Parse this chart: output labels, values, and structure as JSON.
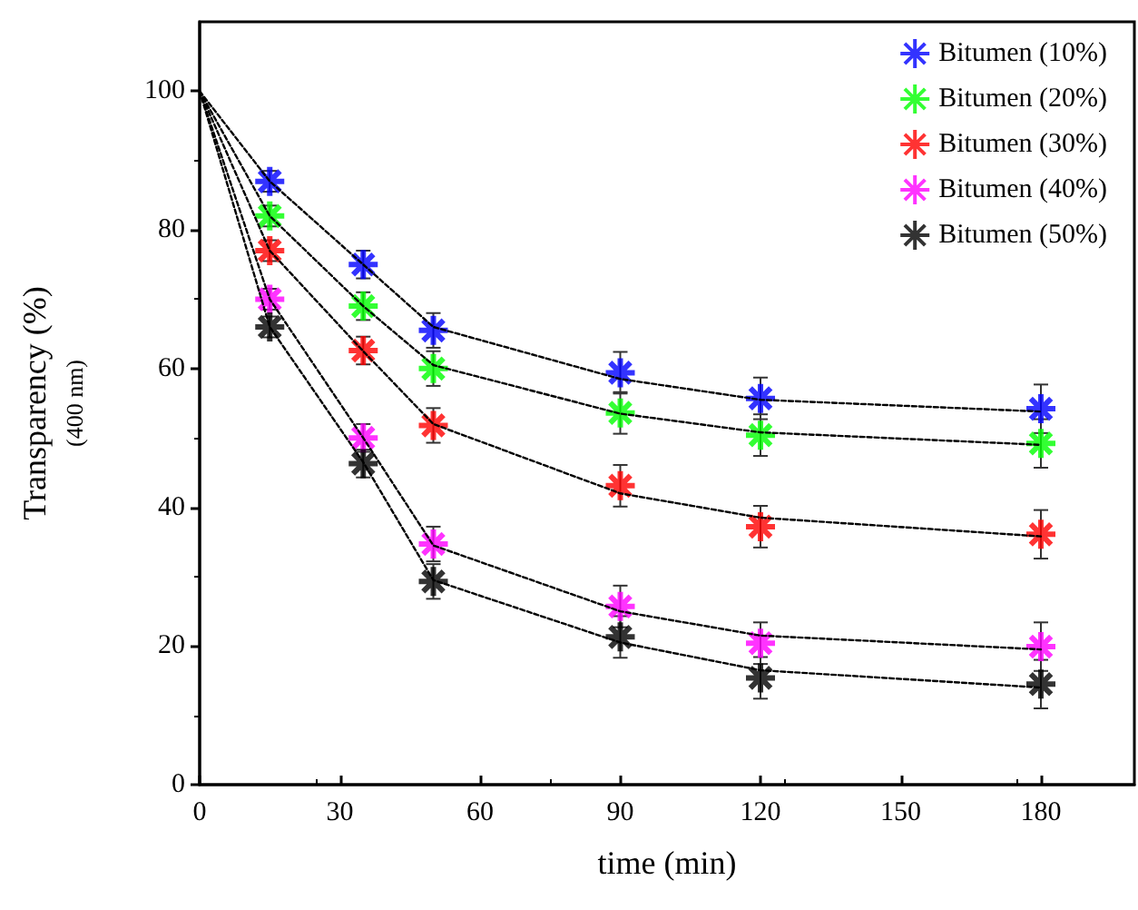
{
  "chart_data": {
    "type": "scatter",
    "xlabel": "time (min)",
    "ylabel": "Transparency (%)\n(400 nm)",
    "x": [
      15,
      35,
      50,
      90,
      120,
      180
    ],
    "xlim": [
      0,
      200
    ],
    "xticks": [
      0,
      30,
      60,
      90,
      120,
      150,
      180
    ],
    "ylim": [
      0,
      110
    ],
    "yticks": [
      0,
      20,
      40,
      60,
      80,
      100
    ],
    "grid": false,
    "legend": "top right",
    "marker": "cross",
    "series": [
      {
        "name": "Bitumen (10%)",
        "color": "#0000ff",
        "values": [
          87,
          75,
          65.5,
          59.4,
          55.7,
          54.2
        ],
        "errors": [
          1.5,
          2,
          2.5,
          3,
          3,
          3.5
        ]
      },
      {
        "name": "Bitumen (20%)",
        "color": "#00ff00",
        "values": [
          82,
          69,
          60,
          53.6,
          50.4,
          49.2
        ],
        "errors": [
          1.5,
          2,
          2.5,
          3,
          3,
          3.5
        ]
      },
      {
        "name": "Bitumen (30%)",
        "color": "#ff0000",
        "values": [
          77,
          62.6,
          51.8,
          43.1,
          37.2,
          36.1
        ],
        "errors": [
          1.5,
          2,
          2.5,
          3,
          3,
          3.5
        ]
      },
      {
        "name": "Bitumen (40%)",
        "color": "#ff00ff",
        "values": [
          70,
          50,
          34.7,
          25.7,
          20.4,
          19.9
        ],
        "errors": [
          1.5,
          2,
          2.5,
          3,
          3,
          3.5
        ]
      },
      {
        "name": "Bitumen (50%)",
        "color": "#000000",
        "values": [
          66,
          46.3,
          29.3,
          21.3,
          15.4,
          14.5
        ],
        "errors": [
          1.5,
          2,
          2.5,
          3,
          3,
          3.5
        ]
      },
      {
        "type": "line",
        "color": "#000000",
        "line_style": "dashed",
        "marker": "none",
        "x": [
          0,
          15,
          35,
          50,
          90,
          120,
          180
        ],
        "values": [
          100,
          87,
          75,
          66,
          58.5,
          55.5,
          53.8
        ]
      },
      {
        "type": "line",
        "color": "#000000",
        "line_style": "dashed",
        "marker": "none",
        "x": [
          0,
          15,
          35,
          50,
          90,
          120,
          180
        ],
        "values": [
          100,
          82,
          69,
          60.5,
          53.5,
          50.8,
          49
        ]
      },
      {
        "type": "line",
        "color": "#000000",
        "line_style": "dashed",
        "marker": "none",
        "x": [
          0,
          15,
          35,
          50,
          90,
          120,
          180
        ],
        "values": [
          100,
          77,
          62.5,
          52,
          42,
          38.5,
          35.8
        ]
      },
      {
        "type": "line",
        "color": "#000000",
        "line_style": "dashed",
        "marker": "none",
        "x": [
          0,
          15,
          35,
          50,
          90,
          120,
          180
        ],
        "values": [
          100,
          70,
          50,
          34.5,
          25,
          21.5,
          19.5
        ]
      },
      {
        "type": "line",
        "color": "#000000",
        "line_style": "dashed",
        "marker": "none",
        "x": [
          0,
          15,
          35,
          50,
          90,
          120,
          180
        ],
        "values": [
          100,
          66,
          46.5,
          29.5,
          20.5,
          16.5,
          14
        ]
      }
    ]
  }
}
